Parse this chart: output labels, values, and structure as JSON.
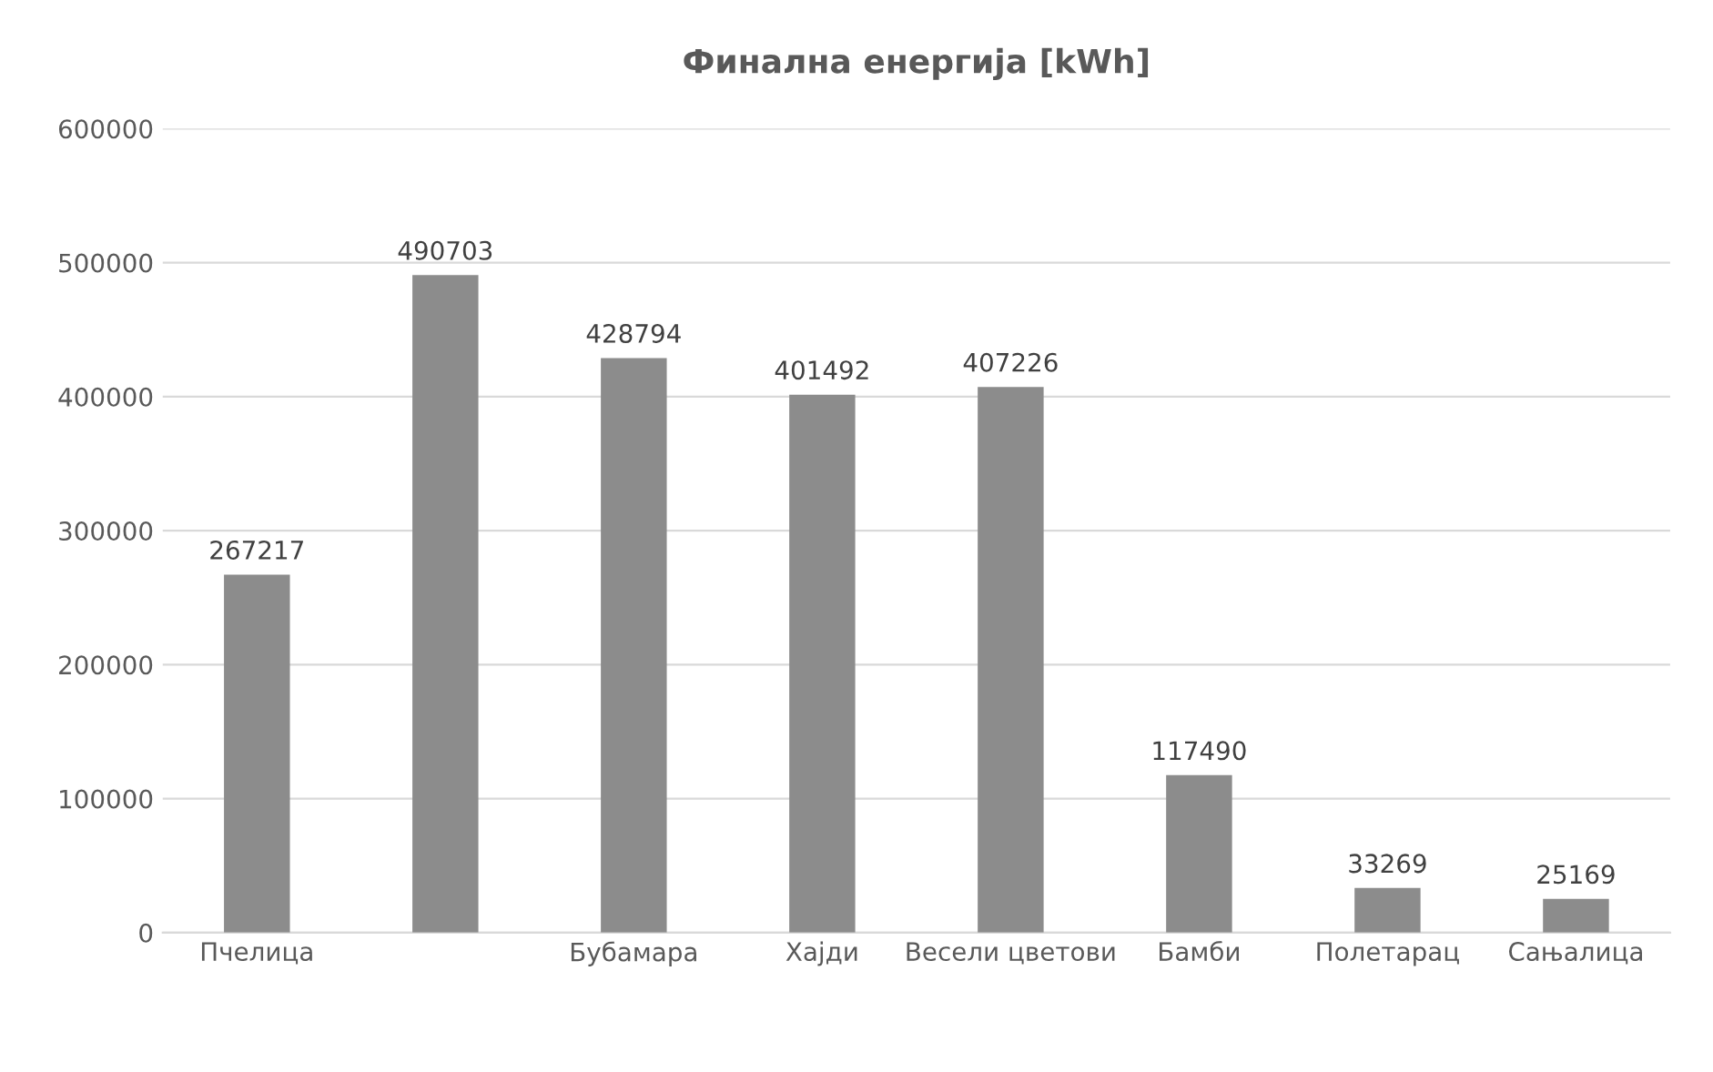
{
  "chart_data": {
    "type": "bar",
    "title": "Финална енергија [kWh]",
    "categories": [
      "Пчелица",
      null,
      "Бубамара",
      "Хајди",
      "Весели цветови",
      "Бамби",
      "Полетарац",
      "Сањалица"
    ],
    "values": [
      267217,
      490703,
      428794,
      401492,
      407226,
      117490,
      33269,
      25169
    ],
    "color": "#8c8c8c",
    "ylim": [
      0,
      600000
    ],
    "yticks": [
      0,
      100000,
      200000,
      300000,
      400000,
      500000,
      600000
    ],
    "grid": "y",
    "data_labels": true
  }
}
